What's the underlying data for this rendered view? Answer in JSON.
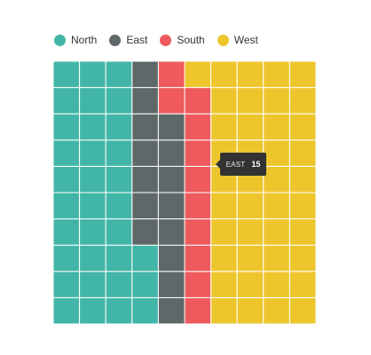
{
  "chart_data": {
    "type": "waffle",
    "grid": {
      "rows": 10,
      "cols": 10
    },
    "categories": [
      "North",
      "East",
      "South",
      "West"
    ],
    "colors": [
      "#41b6a8",
      "#5f6868",
      "#ee5a5e",
      "#edc62e"
    ],
    "values": [
      33,
      15,
      11,
      41
    ],
    "legend_position": "top-left",
    "tooltip": {
      "category": "EAST",
      "value": "15"
    }
  }
}
